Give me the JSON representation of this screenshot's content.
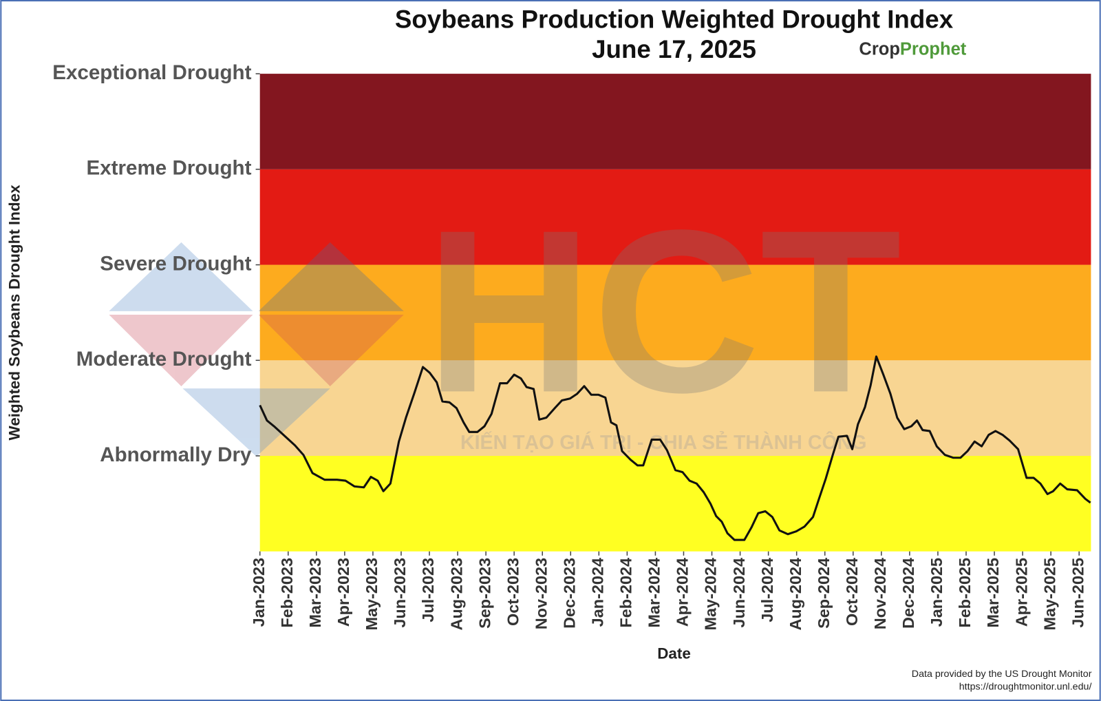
{
  "chart_data": {
    "type": "line",
    "title": "Soybeans Production Weighted Drought Index",
    "subtitle": "June 17, 2025",
    "logo": {
      "part1": "Crop",
      "part2": "Prophet"
    },
    "watermark": {
      "mark": "HCT",
      "tagline": "KIẾN TẠO GIÁ TRỊ - CHIA SẺ THÀNH CÔNG"
    },
    "x_label": "Date",
    "y_label": "Weighted Soybeans Drought Index",
    "source": [
      "Data provided by the US Drought Monitor",
      "https://droughtmonitor.unl.edu/"
    ],
    "line_color": "#111111",
    "bands": [
      {
        "from": -1,
        "to": 0,
        "color": "#ffff22"
      },
      {
        "from": 0,
        "to": 1,
        "color": "#f8d592"
      },
      {
        "from": 1,
        "to": 2,
        "color": "#fdab1e"
      },
      {
        "from": 2,
        "to": 3,
        "color": "#e31b14"
      },
      {
        "from": 3,
        "to": 4,
        "color": "#83161f"
      }
    ],
    "ylim": [
      -1,
      4
    ],
    "yticks": [
      {
        "value": 0,
        "label": "Abnormally Dry"
      },
      {
        "value": 1,
        "label": "Moderate Drought"
      },
      {
        "value": 2,
        "label": "Severe Drought"
      },
      {
        "value": 3,
        "label": "Extreme Drought"
      },
      {
        "value": 4,
        "label": "Exceptional Drought"
      }
    ],
    "xlim": [
      0,
      29.42
    ],
    "xticks": [
      {
        "value": 0,
        "label": "Jan-2023"
      },
      {
        "value": 1,
        "label": "Feb-2023"
      },
      {
        "value": 2,
        "label": "Mar-2023"
      },
      {
        "value": 3,
        "label": "Apr-2023"
      },
      {
        "value": 4,
        "label": "May-2023"
      },
      {
        "value": 5,
        "label": "Jun-2023"
      },
      {
        "value": 6,
        "label": "Jul-2023"
      },
      {
        "value": 7,
        "label": "Aug-2023"
      },
      {
        "value": 8,
        "label": "Sep-2023"
      },
      {
        "value": 9,
        "label": "Oct-2023"
      },
      {
        "value": 10,
        "label": "Nov-2023"
      },
      {
        "value": 11,
        "label": "Dec-2023"
      },
      {
        "value": 12,
        "label": "Jan-2024"
      },
      {
        "value": 13,
        "label": "Feb-2024"
      },
      {
        "value": 14,
        "label": "Mar-2024"
      },
      {
        "value": 15,
        "label": "Apr-2024"
      },
      {
        "value": 16,
        "label": "May-2024"
      },
      {
        "value": 17,
        "label": "Jun-2024"
      },
      {
        "value": 18,
        "label": "Jul-2024"
      },
      {
        "value": 19,
        "label": "Aug-2024"
      },
      {
        "value": 20,
        "label": "Sep-2024"
      },
      {
        "value": 21,
        "label": "Oct-2024"
      },
      {
        "value": 22,
        "label": "Nov-2024"
      },
      {
        "value": 23,
        "label": "Dec-2024"
      },
      {
        "value": 24,
        "label": "Jan-2025"
      },
      {
        "value": 25,
        "label": "Feb-2025"
      },
      {
        "value": 26,
        "label": "Mar-2025"
      },
      {
        "value": 27,
        "label": "Apr-2025"
      },
      {
        "value": 28,
        "label": "May-2025"
      },
      {
        "value": 29,
        "label": "Jun-2025"
      }
    ],
    "x": [
      0,
      0.25,
      0.5,
      0.87,
      1.24,
      1.54,
      1.86,
      2.29,
      2.73,
      3.03,
      3.35,
      3.68,
      3.93,
      4.17,
      4.37,
      4.62,
      4.92,
      5.17,
      5.47,
      5.77,
      6.01,
      6.26,
      6.46,
      6.71,
      6.96,
      7.21,
      7.41,
      7.7,
      7.95,
      8.2,
      8.5,
      8.75,
      9.0,
      9.24,
      9.44,
      9.69,
      9.89,
      10.14,
      10.44,
      10.69,
      10.98,
      11.23,
      11.48,
      11.73,
      11.98,
      12.23,
      12.43,
      12.62,
      12.82,
      13.12,
      13.37,
      13.57,
      13.87,
      14.17,
      14.41,
      14.71,
      14.96,
      15.21,
      15.46,
      15.71,
      15.95,
      16.15,
      16.35,
      16.55,
      16.8,
      17.15,
      17.4,
      17.64,
      17.89,
      18.14,
      18.39,
      18.69,
      18.99,
      19.28,
      19.58,
      19.78,
      20.03,
      20.28,
      20.48,
      20.78,
      20.97,
      21.17,
      21.42,
      21.62,
      21.82,
      22.07,
      22.32,
      22.56,
      22.81,
      23.06,
      23.26,
      23.46,
      23.71,
      23.96,
      24.25,
      24.55,
      24.8,
      25.05,
      25.3,
      25.55,
      25.8,
      26.04,
      26.29,
      26.54,
      26.84,
      27.14,
      27.39,
      27.63,
      27.88,
      28.08,
      28.33,
      28.58,
      28.93,
      29.22,
      29.4
    ],
    "values": [
      0.53,
      0.37,
      0.31,
      0.21,
      0.11,
      0.01,
      -0.18,
      -0.25,
      -0.25,
      -0.26,
      -0.32,
      -0.33,
      -0.22,
      -0.26,
      -0.37,
      -0.29,
      0.15,
      0.4,
      0.66,
      0.93,
      0.87,
      0.77,
      0.57,
      0.56,
      0.5,
      0.35,
      0.25,
      0.25,
      0.31,
      0.44,
      0.76,
      0.76,
      0.85,
      0.81,
      0.72,
      0.7,
      0.38,
      0.4,
      0.5,
      0.58,
      0.6,
      0.65,
      0.73,
      0.64,
      0.64,
      0.61,
      0.35,
      0.32,
      0.05,
      -0.04,
      -0.1,
      -0.1,
      0.17,
      0.17,
      0.06,
      -0.15,
      -0.17,
      -0.26,
      -0.29,
      -0.38,
      -0.5,
      -0.63,
      -0.69,
      -0.81,
      -0.88,
      -0.88,
      -0.75,
      -0.6,
      -0.58,
      -0.64,
      -0.78,
      -0.82,
      -0.79,
      -0.74,
      -0.64,
      -0.46,
      -0.24,
      0.01,
      0.2,
      0.21,
      0.07,
      0.33,
      0.51,
      0.74,
      1.04,
      0.85,
      0.65,
      0.4,
      0.28,
      0.31,
      0.37,
      0.27,
      0.26,
      0.1,
      0.01,
      -0.02,
      -0.02,
      0.05,
      0.15,
      0.1,
      0.22,
      0.26,
      0.22,
      0.16,
      0.07,
      -0.23,
      -0.23,
      -0.29,
      -0.4,
      -0.37,
      -0.29,
      -0.35,
      -0.36,
      -0.45,
      -0.49
    ]
  }
}
